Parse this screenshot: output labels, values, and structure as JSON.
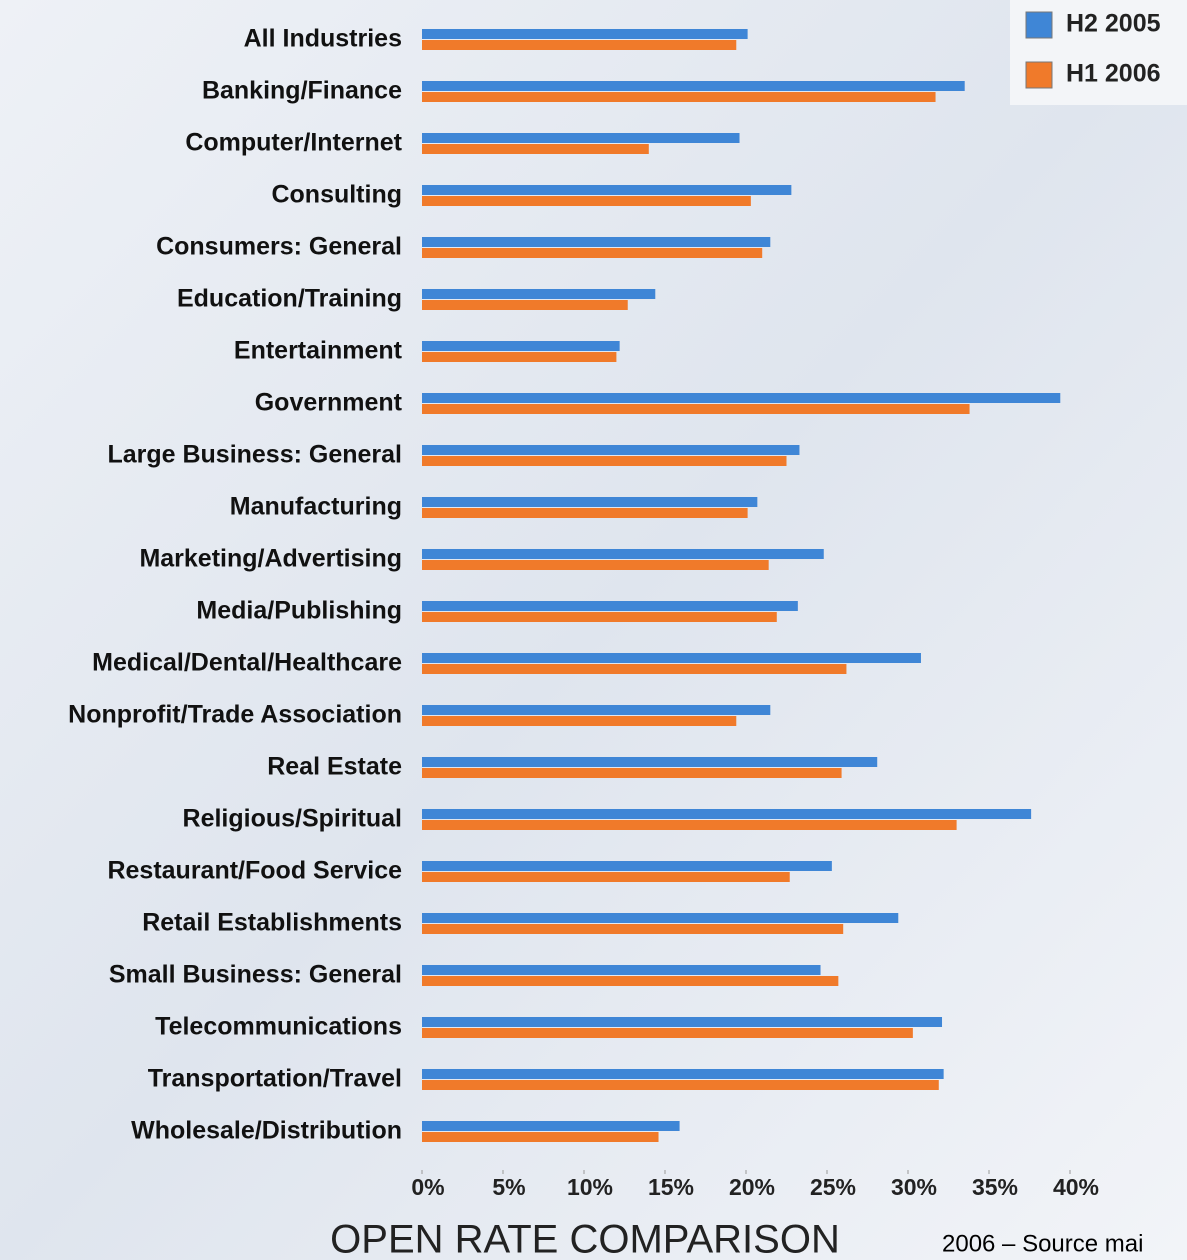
{
  "chart_data": {
    "type": "bar",
    "orientation": "horizontal",
    "title": "OPEN RATE COMPARISON",
    "annotation": "2006 – Source mai",
    "categories": [
      "All Industries",
      "Banking/Finance",
      "Computer/Internet",
      "Consulting",
      "Consumers: General",
      "Education/Training",
      "Entertainment",
      "Government",
      "Large Business: General",
      "Manufacturing",
      "Marketing/Advertising",
      "Media/Publishing",
      "Medical/Dental/Healthcare",
      "Nonprofit/Trade Association",
      "Real Estate",
      "Religious/Spiritual",
      "Restaurant/Food Service",
      "Retail Establishments",
      "Small Business: General",
      "Telecommunications",
      "Transportation/Travel",
      "Wholesale/Distribution"
    ],
    "series": [
      {
        "name": "H2 2005",
        "color": "#3f86d6",
        "values": [
          20.1,
          33.5,
          19.6,
          22.8,
          21.5,
          14.4,
          12.2,
          39.4,
          23.3,
          20.7,
          24.8,
          23.2,
          30.8,
          21.5,
          28.1,
          37.6,
          25.3,
          29.4,
          24.6,
          32.1,
          32.2,
          15.9
        ]
      },
      {
        "name": "H1 2006",
        "color": "#f07a2a",
        "values": [
          19.4,
          31.7,
          14.0,
          20.3,
          21.0,
          12.7,
          12.0,
          33.8,
          22.5,
          20.1,
          21.4,
          21.9,
          26.2,
          19.4,
          25.9,
          33.0,
          22.7,
          26.0,
          25.7,
          30.3,
          31.9,
          14.6
        ]
      }
    ],
    "xlim": [
      0,
      40
    ],
    "xticks": [
      {
        "value": 0,
        "label": "0%"
      },
      {
        "value": 5,
        "label": "5%"
      },
      {
        "value": 10,
        "label": "10%"
      },
      {
        "value": 15,
        "label": "15%"
      },
      {
        "value": 20,
        "label": "20%"
      },
      {
        "value": 25,
        "label": "25%"
      },
      {
        "value": 30,
        "label": "30%"
      },
      {
        "value": 35,
        "label": "35%"
      },
      {
        "value": 40,
        "label": "40%"
      }
    ],
    "legend": "top-right"
  }
}
